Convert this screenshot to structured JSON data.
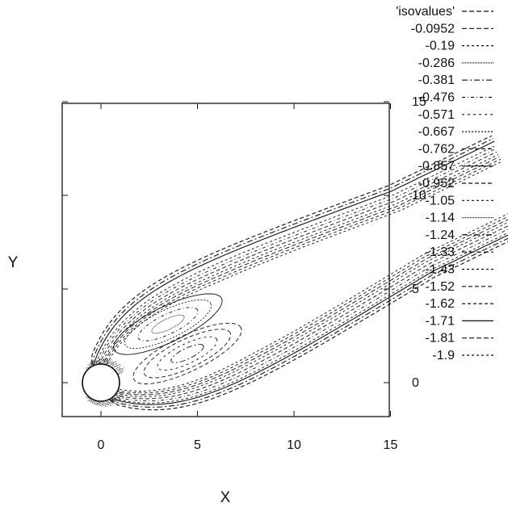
{
  "chart_data": {
    "type": "contour",
    "title": "",
    "xlabel": "X",
    "ylabel": "Y",
    "xlim": [
      -2,
      15
    ],
    "ylim": [
      -1.5,
      16
    ],
    "x_ticks": [
      "0",
      "5",
      "10",
      "15"
    ],
    "y_ticks": [
      "0",
      "5",
      "10",
      "15"
    ],
    "y_tick_values": [
      0,
      5,
      10,
      15
    ],
    "x_tick_values": [
      0,
      5,
      10,
      15
    ],
    "obstacle": {
      "shape": "circle",
      "center": [
        0,
        0
      ],
      "radius": 0.95
    },
    "legend_placement": "top-right",
    "legend": [
      "'isovalues'",
      "-0.0952",
      "-0.19",
      "-0.286",
      "-0.381",
      "-0.476",
      "-0.571",
      "-0.667",
      "-0.762",
      "-0.857",
      "-0.952",
      "-1.05",
      "-1.14",
      "-1.24",
      "-1.33",
      "-1.43",
      "-1.52",
      "-1.62",
      "-1.71",
      "-1.81",
      "-1.9"
    ],
    "legend_dash_styles": [
      "6,3",
      "6,3",
      "3,3",
      "1,1",
      "7,3,2,3",
      "4,3,1,3",
      "3,4",
      "2,2",
      "5,3",
      "0",
      "5,3",
      "3,3",
      "1,1",
      "7,3,2,3",
      "6,3",
      "3,3",
      "5,3",
      "4,3",
      "0",
      "6,3",
      "3,3"
    ],
    "series_color": "#111111",
    "contour_groups": {
      "outer_wake_offsets": [
        0.0,
        0.45,
        0.9
      ],
      "band_offsets": [
        0.2,
        0.5,
        0.8,
        1.1,
        1.35,
        1.6,
        1.85
      ],
      "vortex_levels": [
        0.3,
        0.55,
        0.8,
        1.0
      ]
    }
  }
}
